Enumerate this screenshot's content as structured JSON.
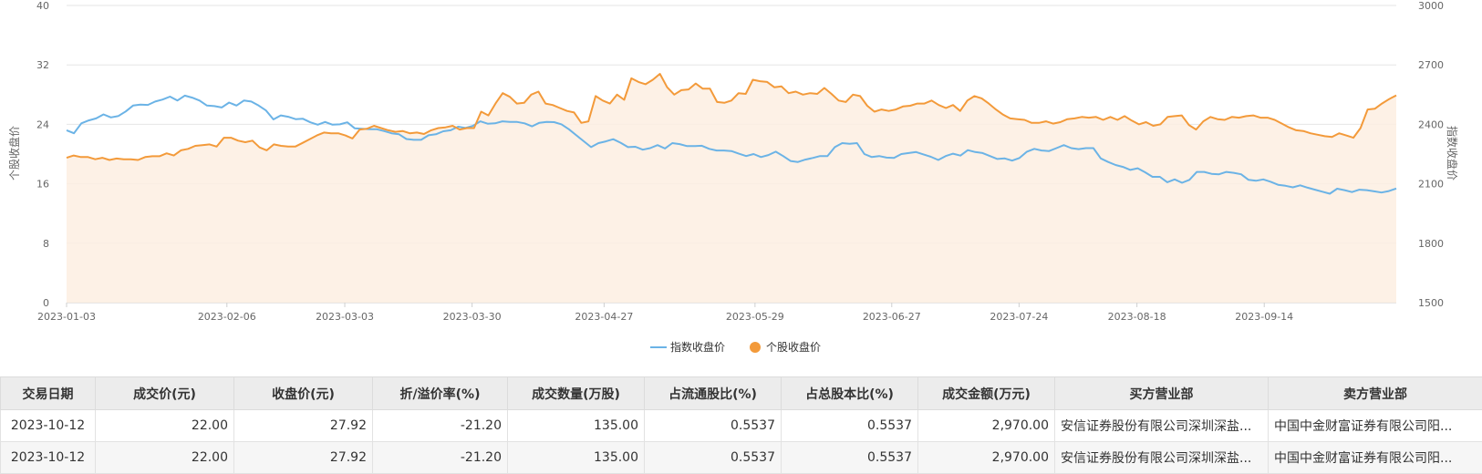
{
  "chart_data": {
    "type": "line",
    "left_axis": {
      "title": "个股收盘价",
      "ticks": [
        "0",
        "8",
        "16",
        "24",
        "32",
        "40"
      ],
      "ylim": [
        0,
        40
      ]
    },
    "right_axis": {
      "title": "指数收盘价",
      "ticks": [
        "1500",
        "1800",
        "2100",
        "2400",
        "2700",
        "3000"
      ],
      "ylim": [
        1500,
        3000
      ]
    },
    "x_ticks": [
      "2023-01-03",
      "2023-02-06",
      "2023-03-03",
      "2023-03-30",
      "2023-04-27",
      "2023-05-29",
      "2023-06-27",
      "2023-07-24",
      "2023-08-18",
      "2023-09-14"
    ],
    "x_range": [
      "2023-01-03",
      "2023-10-12"
    ],
    "grid": "horizontal",
    "legend_position": "bottom-center",
    "series": [
      {
        "name": "指数收盘价",
        "axis": "right",
        "color": "#6bb3e6",
        "style": "line",
        "values": [
          2370,
          2355,
          2405,
          2420,
          2430,
          2450,
          2435,
          2442,
          2465,
          2495,
          2500,
          2498,
          2515,
          2525,
          2540,
          2520,
          2545,
          2535,
          2520,
          2495,
          2492,
          2485,
          2510,
          2495,
          2520,
          2515,
          2495,
          2470,
          2425,
          2445,
          2438,
          2426,
          2428,
          2410,
          2398,
          2412,
          2398,
          2400,
          2410,
          2380,
          2378,
          2375,
          2375,
          2366,
          2355,
          2350,
          2326,
          2322,
          2322,
          2345,
          2350,
          2365,
          2370,
          2388,
          2382,
          2392,
          2415,
          2403,
          2405,
          2415,
          2412,
          2412,
          2405,
          2390,
          2408,
          2412,
          2411,
          2400,
          2375,
          2345,
          2315,
          2285,
          2305,
          2314,
          2325,
          2307,
          2285,
          2287,
          2272,
          2280,
          2295,
          2278,
          2305,
          2300,
          2290,
          2290,
          2292,
          2276,
          2268,
          2268,
          2265,
          2252,
          2240,
          2250,
          2235,
          2245,
          2262,
          2240,
          2215,
          2210,
          2222,
          2230,
          2240,
          2240,
          2285,
          2305,
          2302,
          2305,
          2250,
          2235,
          2240,
          2232,
          2230,
          2250,
          2255,
          2260,
          2248,
          2236,
          2220,
          2240,
          2252,
          2242,
          2270,
          2260,
          2255,
          2240,
          2225,
          2228,
          2217,
          2230,
          2262,
          2276,
          2268,
          2265,
          2280,
          2295,
          2280,
          2275,
          2280,
          2280,
          2228,
          2210,
          2195,
          2185,
          2170,
          2178,
          2158,
          2135,
          2135,
          2108,
          2122,
          2105,
          2120,
          2160,
          2160,
          2150,
          2148,
          2160,
          2155,
          2148,
          2120,
          2115,
          2122,
          2110,
          2095,
          2090,
          2082,
          2092,
          2080,
          2070,
          2060,
          2050,
          2075,
          2068,
          2058,
          2070,
          2068,
          2062,
          2056,
          2063,
          2076
        ]
      },
      {
        "name": "个股收盘价",
        "axis": "left",
        "color": "#f39a3a",
        "style": "area",
        "values": [
          19.5,
          19.8,
          19.6,
          19.6,
          19.3,
          19.5,
          19.2,
          19.4,
          19.3,
          19.3,
          19.2,
          19.6,
          19.7,
          19.7,
          20.1,
          19.8,
          20.5,
          20.7,
          21.1,
          21.2,
          21.3,
          21.0,
          22.2,
          22.2,
          21.8,
          21.6,
          21.8,
          20.9,
          20.5,
          21.3,
          21.1,
          21.0,
          21.0,
          21.5,
          22.0,
          22.5,
          22.9,
          22.8,
          22.8,
          22.5,
          22.1,
          23.3,
          23.4,
          23.8,
          23.5,
          23.2,
          23.0,
          23.1,
          22.8,
          22.9,
          22.7,
          23.2,
          23.5,
          23.6,
          23.8,
          23.3,
          23.5,
          23.5,
          25.7,
          25.2,
          26.8,
          28.2,
          27.7,
          26.8,
          26.9,
          28.0,
          28.4,
          26.8,
          26.6,
          26.2,
          25.8,
          25.6,
          24.2,
          24.4,
          27.8,
          27.2,
          26.8,
          28.0,
          27.3,
          30.2,
          29.7,
          29.4,
          30.0,
          30.8,
          29.0,
          28.0,
          28.6,
          28.7,
          29.5,
          28.8,
          28.8,
          27.0,
          26.9,
          27.2,
          28.2,
          28.1,
          30.0,
          29.8,
          29.7,
          29.0,
          29.1,
          28.2,
          28.4,
          28.0,
          28.2,
          28.1,
          28.9,
          28.1,
          27.2,
          27.0,
          28.0,
          27.8,
          26.5,
          25.7,
          26.0,
          25.8,
          26.0,
          26.4,
          26.5,
          26.8,
          26.8,
          27.2,
          26.6,
          26.2,
          26.6,
          25.8,
          27.2,
          27.8,
          27.5,
          26.8,
          26.0,
          25.3,
          24.8,
          24.7,
          24.6,
          24.2,
          24.2,
          24.4,
          24.1,
          24.3,
          24.7,
          24.8,
          25.0,
          24.9,
          25.0,
          24.6,
          25.0,
          24.6,
          25.1,
          24.5,
          24.0,
          24.3,
          23.8,
          24.0,
          25.0,
          25.1,
          25.2,
          23.9,
          23.3,
          24.4,
          25.0,
          24.7,
          24.6,
          25.0,
          24.9,
          25.1,
          25.2,
          24.9,
          24.9,
          24.6,
          24.1,
          23.6,
          23.2,
          23.1,
          22.8,
          22.6,
          22.4,
          22.3,
          22.8,
          22.5,
          22.2,
          23.5,
          26.0,
          26.1,
          26.8,
          27.4,
          27.9
        ]
      }
    ]
  },
  "legend": {
    "index_label": "指数收盘价",
    "stock_label": "个股收盘价"
  },
  "table": {
    "headers": [
      "交易日期",
      "成交价(元)",
      "收盘价(元)",
      "折/溢价率(%)",
      "成交数量(万股)",
      "占流通股比(%)",
      "占总股本比(%)",
      "成交金额(万元)",
      "买方营业部",
      "卖方营业部"
    ],
    "rows": [
      [
        "2023-10-12",
        "22.00",
        "27.92",
        "-21.20",
        "135.00",
        "0.5537",
        "0.5537",
        "2,970.00",
        "安信证券股份有限公司深圳深盐...",
        "中国中金财富证券有限公司阳..."
      ],
      [
        "2023-10-12",
        "22.00",
        "27.92",
        "-21.20",
        "135.00",
        "0.5537",
        "0.5537",
        "2,970.00",
        "安信证券股份有限公司深圳深盐...",
        "中国中金财富证券有限公司阳..."
      ]
    ]
  }
}
